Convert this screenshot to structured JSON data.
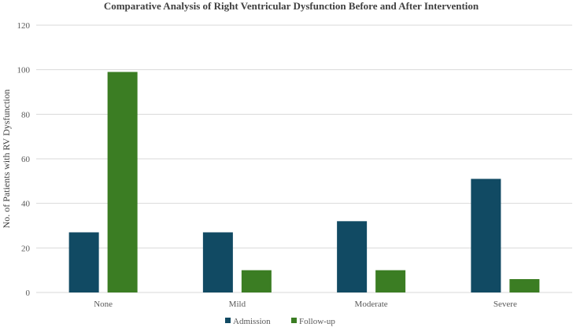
{
  "chart_data": {
    "type": "bar",
    "title": "Comparative Analysis of Right Ventricular Dysfunction Before and After Intervention",
    "xlabel": "",
    "ylabel": "No. of Patients with RV Dysfunction",
    "categories": [
      "None",
      "Mild",
      "Moderate",
      "Severe"
    ],
    "series": [
      {
        "name": "Admission",
        "values": [
          27,
          27,
          32,
          51
        ],
        "color": "#114a63"
      },
      {
        "name": "Follow-up",
        "values": [
          99,
          10,
          10,
          6
        ],
        "color": "#3b7d23"
      }
    ],
    "ylim": [
      0,
      120
    ],
    "yticks": [
      0,
      20,
      40,
      60,
      80,
      100,
      120
    ],
    "grid": true,
    "legend": "bottom"
  }
}
